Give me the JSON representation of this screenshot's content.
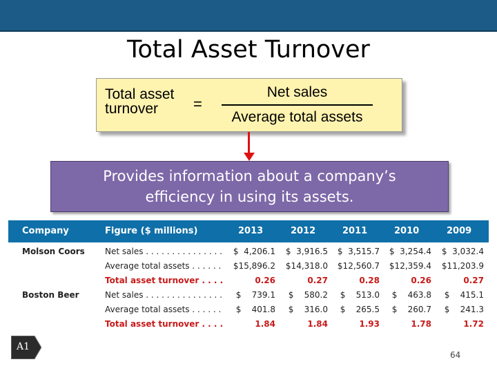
{
  "slide": {
    "title": "Total Asset Turnover",
    "page_number": "64",
    "tag": "A1"
  },
  "formula": {
    "lhs_line1": "Total asset",
    "lhs_line2": "turnover",
    "equals": "=",
    "numerator": "Net sales",
    "denominator": "Average total assets"
  },
  "info": {
    "line1": "Provides information about a company’s",
    "line2": "efficiency in using its assets."
  },
  "table": {
    "headers": [
      "Company",
      "Figure ($ millions)",
      "2013",
      "2012",
      "2011",
      "2010",
      "2009"
    ],
    "rows": [
      {
        "company": "Molson Coors",
        "figure": "Net sales . . . . . . . . . . . . . . . .",
        "values": [
          "$  4,206.1",
          "$  3,916.5",
          "$  3,515.7",
          "$  3,254.4",
          "$  3,032.4"
        ]
      },
      {
        "company": "",
        "figure": "Average total assets . . . . . . .",
        "values": [
          "$15,896.2",
          "$14,318.0",
          "$12,560.7",
          "$12,359.4",
          "$11,203.9"
        ]
      },
      {
        "company": "",
        "figure": "Total asset turnover . . . . .",
        "values": [
          "0.26",
          "0.27",
          "0.28",
          "0.26",
          "0.27"
        ],
        "highlight": true
      },
      {
        "company": "Boston Beer",
        "figure": "Net sales . . . . . . . . . . . . . . . .",
        "values": [
          "$    739.1",
          "$    580.2",
          "$    513.0",
          "$    463.8",
          "$    415.1"
        ]
      },
      {
        "company": "",
        "figure": "Average total assets . . . . . . .",
        "values": [
          "$    401.8",
          "$    316.0",
          "$    265.5",
          "$    260.7",
          "$    241.3"
        ]
      },
      {
        "company": "",
        "figure": "Total asset turnover . . . . .",
        "values": [
          "1.84",
          "1.84",
          "1.93",
          "1.78",
          "1.72"
        ],
        "highlight": true
      }
    ]
  },
  "colors": {
    "top_bar": "#1c5b87",
    "formula_bg": "#fff3b0",
    "info_bg": "#7d68a8",
    "table_header": "#0f6fa8",
    "highlight_text": "#c81a1a",
    "arrow": "#e01010"
  }
}
